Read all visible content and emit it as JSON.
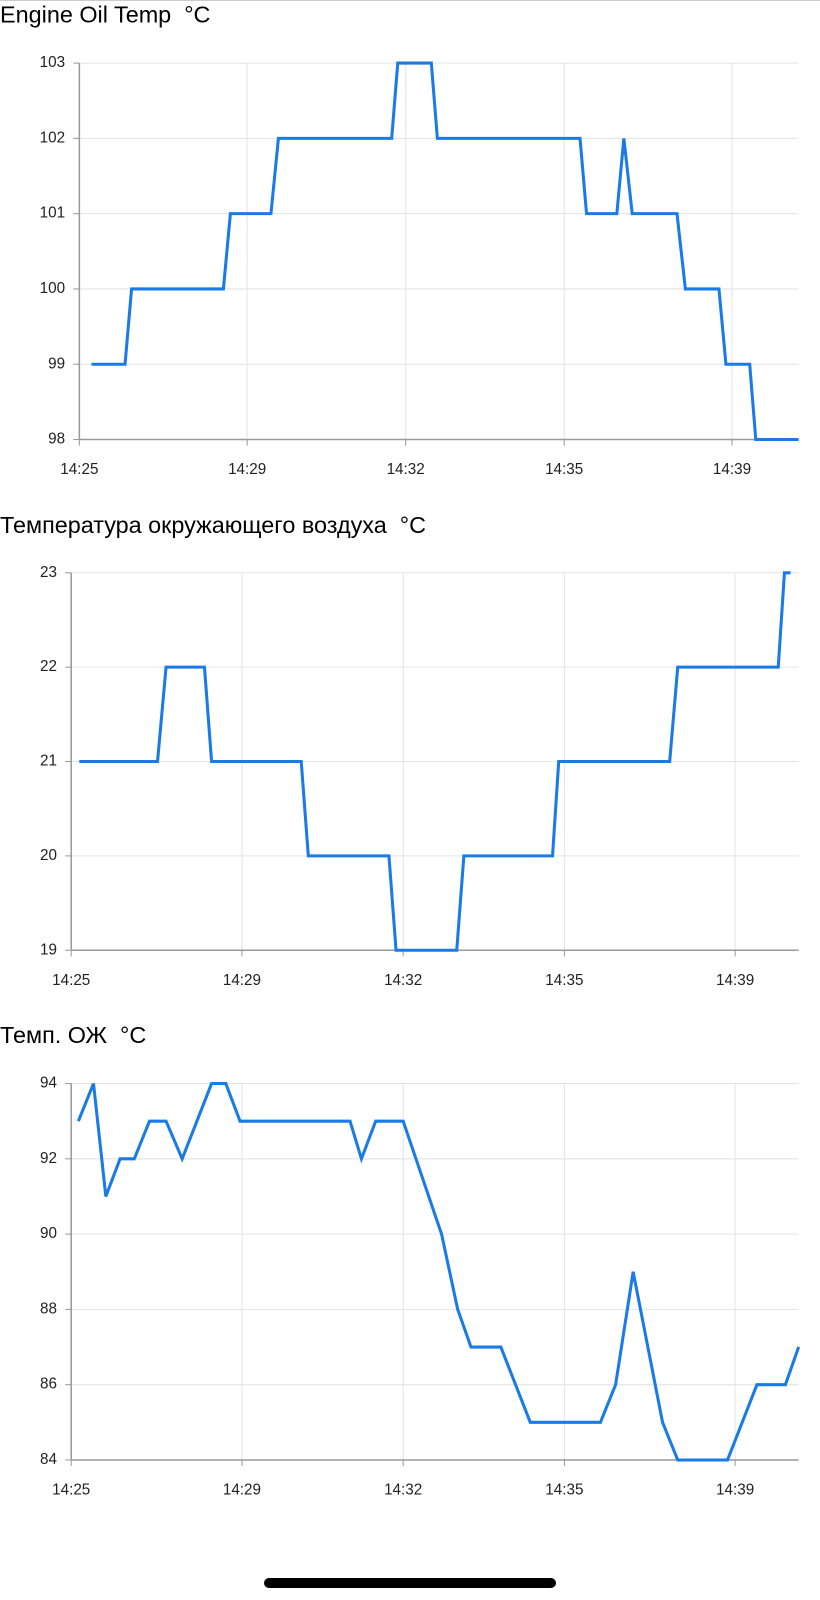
{
  "chart_data": [
    {
      "type": "line",
      "title": "Engine Oil Temp  °C",
      "color": "#1a7be6",
      "grid": true,
      "x": [
        865.26,
        865.98,
        866.12,
        868.09,
        868.24,
        869.11,
        869.27,
        871.7,
        871.83,
        872.55,
        872.68,
        875.74,
        875.88,
        876.53,
        876.68,
        876.86,
        877.82,
        878.0,
        878.72,
        878.87,
        879.38,
        879.51,
        880.43
      ],
      "values": [
        99,
        99,
        100,
        100,
        101,
        101,
        102,
        102,
        103,
        103,
        102,
        102,
        101,
        101,
        102,
        101,
        101,
        100,
        100,
        99,
        99,
        98,
        98
      ],
      "xlim": [
        865,
        880.43
      ],
      "xticks": [
        {
          "value": 865,
          "label": "14:25"
        },
        {
          "value": 868.6,
          "label": "14:29"
        },
        {
          "value": 872,
          "label": "14:32"
        },
        {
          "value": 875.4,
          "label": "14:35"
        },
        {
          "value": 879,
          "label": "14:39"
        }
      ],
      "ylim": [
        98,
        103
      ],
      "yticks": [
        98,
        99,
        100,
        101,
        102,
        103
      ]
    },
    {
      "type": "line",
      "title": "Температура окружающего воздуха  °C",
      "color": "#1a7be6",
      "grid": true,
      "x": [
        865.17,
        866.82,
        867.0,
        867.81,
        867.96,
        869.85,
        870.0,
        871.7,
        871.85,
        873.13,
        873.28,
        875.15,
        875.28,
        877.62,
        877.79,
        879.91,
        880.04,
        880.17
      ],
      "values": [
        21,
        21,
        22,
        22,
        21,
        21,
        20,
        20,
        19,
        19,
        20,
        20,
        21,
        21,
        22,
        22,
        23,
        23
      ],
      "xlim": [
        865,
        880.34
      ],
      "xticks": [
        {
          "value": 865,
          "label": "14:25"
        },
        {
          "value": 868.6,
          "label": "14:29"
        },
        {
          "value": 872,
          "label": "14:32"
        },
        {
          "value": 875.4,
          "label": "14:35"
        },
        {
          "value": 879,
          "label": "14:39"
        }
      ],
      "ylim": [
        19,
        23
      ],
      "yticks": [
        19,
        20,
        21,
        22,
        23
      ]
    },
    {
      "type": "line",
      "title": "Темп. ОЖ  °C",
      "color": "#1a7be6",
      "grid": true,
      "x": [
        865.15,
        865.47,
        865.73,
        866.03,
        866.33,
        866.65,
        867.0,
        867.34,
        867.96,
        868.26,
        868.56,
        870.88,
        871.12,
        871.42,
        872.0,
        872.81,
        873.15,
        873.43,
        874.06,
        874.68,
        876.16,
        876.48,
        876.85,
        877.47,
        877.79,
        878.84,
        879.46,
        880.06,
        880.34
      ],
      "values": [
        93,
        94,
        91,
        92,
        92,
        93,
        93,
        92,
        94,
        94,
        93,
        93,
        92,
        93,
        93,
        90,
        88,
        87,
        87,
        85,
        85,
        86,
        89,
        85,
        84,
        84,
        86,
        86,
        87
      ],
      "xlim": [
        865,
        880.34
      ],
      "xticks": [
        {
          "value": 865,
          "label": "14:25"
        },
        {
          "value": 868.6,
          "label": "14:29"
        },
        {
          "value": 872,
          "label": "14:32"
        },
        {
          "value": 875.4,
          "label": "14:35"
        },
        {
          "value": 879,
          "label": "14:39"
        }
      ],
      "ylim": [
        84,
        94
      ],
      "yticks": [
        84,
        86,
        88,
        90,
        92,
        94
      ]
    }
  ]
}
